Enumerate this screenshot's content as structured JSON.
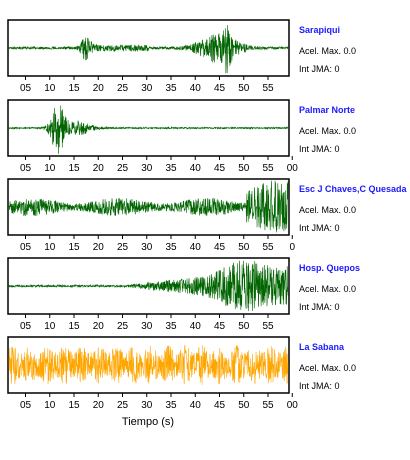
{
  "x_axis": {
    "title": "Tiempo (s)",
    "ticks": [
      "05",
      "10",
      "15",
      "20",
      "25",
      "30",
      "35",
      "40",
      "45",
      "50",
      "55"
    ],
    "ticks_last_panel": [
      "05",
      "10",
      "15",
      "20",
      "25",
      "30",
      "35",
      "40",
      "45",
      "50",
      "55",
      "00"
    ],
    "ticks_with_trailing_zero": [
      "05",
      "10",
      "15",
      "20",
      "25",
      "30",
      "35",
      "40",
      "45",
      "50",
      "55",
      "0"
    ]
  },
  "stations": [
    {
      "name": "Sarapiqui",
      "accel_label": "Acel. Max. 0.0",
      "jma_label": "Int JMA: 0",
      "trace_color": "#006400",
      "tick_set": "ticks"
    },
    {
      "name": "Palmar Norte",
      "accel_label": "Acel. Max. 0.0",
      "jma_label": "Int JMA: 0",
      "trace_color": "#006400",
      "tick_set": "ticks_last_panel"
    },
    {
      "name": "Esc J Chaves,C Quesada",
      "accel_label": "Acel. Max. 0.0",
      "jma_label": "Int JMA: 0",
      "trace_color": "#006400",
      "tick_set": "ticks_with_trailing_zero"
    },
    {
      "name": "Hosp. Quepos",
      "accel_label": "Acel. Max. 0.0",
      "jma_label": "Int JMA: 0",
      "trace_color": "#006400",
      "tick_set": "ticks"
    },
    {
      "name": "La Sabana",
      "accel_label": "Acel. Max. 0.0",
      "jma_label": "Int JMA: 0",
      "trace_color": "#FFA500",
      "tick_set": "ticks_last_panel"
    }
  ]
}
